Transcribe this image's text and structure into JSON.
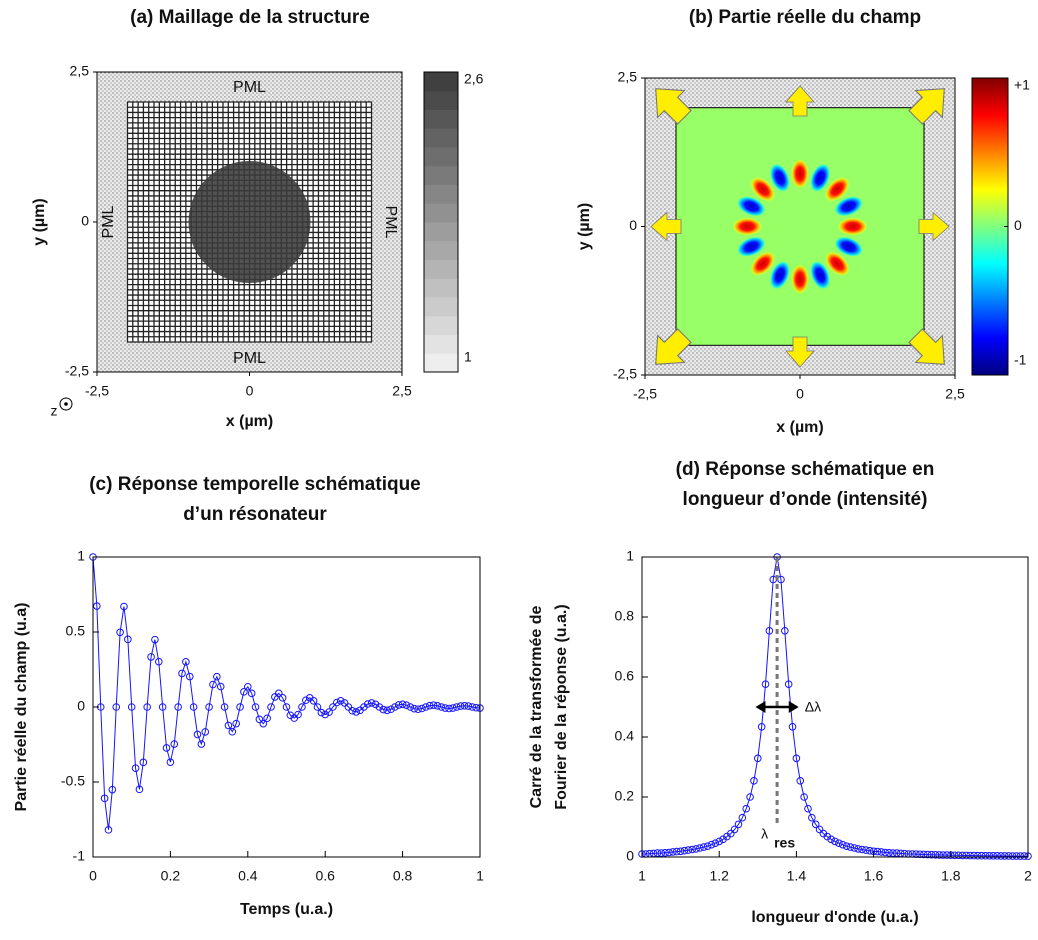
{
  "chart_data": [
    {
      "type": "mesh",
      "title": "(a) Maillage de la structure",
      "xlabel": "x (µm)",
      "ylabel": "y (µm)",
      "xlim": [
        -2.5,
        2.5
      ],
      "ylim": [
        -2.5,
        2.5
      ],
      "xticks": [
        {
          "value": -2.5,
          "label": "-2,5"
        },
        0,
        {
          "value": 2.5,
          "label": "2,5"
        }
      ],
      "yticks": [
        {
          "value": -2.5,
          "label": "-2,5"
        },
        0,
        {
          "value": 2.5,
          "label": "2,5"
        }
      ],
      "annotations": [
        "PML",
        "PML",
        "PML",
        "PML"
      ],
      "axis_note": "z",
      "colorbar": {
        "clim": [
          1,
          2.6
        ],
        "ticks": [
          {
            "value": 2.6,
            "label": "2,6"
          },
          1
        ],
        "colors": [
          "#f4f4f4",
          "#3a3a3a"
        ]
      }
    },
    {
      "type": "field",
      "title": "(b) Partie réelle du champ",
      "xlabel": "x (µm)",
      "ylabel": "y (µm)",
      "xlim": [
        -2.5,
        2.5
      ],
      "ylim": [
        -2.5,
        2.5
      ],
      "xticks": [
        {
          "value": -2.5,
          "label": "-2,5"
        },
        0,
        {
          "value": 2.5,
          "label": "2,5"
        }
      ],
      "yticks": [
        {
          "value": -2.5,
          "label": "-2,5"
        },
        0,
        {
          "value": 2.5,
          "label": "2,5"
        }
      ],
      "colorbar": {
        "clim": [
          -1,
          1
        ],
        "ticks": [
          {
            "value": 1,
            "label": "+1"
          },
          0,
          -1
        ],
        "colormap": "jet"
      }
    },
    {
      "type": "line",
      "title": [
        "(c) Réponse temporelle schématique",
        "d’un résonateur"
      ],
      "xlabel": "Temps (u.a.)",
      "ylabel": [
        "Partie réelle du champ (u.a)"
      ],
      "xlim": [
        0,
        1
      ],
      "ylim": [
        -1,
        1
      ],
      "xticks": [
        0,
        0.2,
        0.4,
        0.6,
        0.8,
        1
      ],
      "yticks": [
        -1,
        -0.5,
        0,
        0.5,
        1
      ],
      "x": [
        0,
        0.01,
        0.02,
        0.03,
        0.04,
        0.05,
        0.06,
        0.07,
        0.08,
        0.09,
        0.1,
        0.11,
        0.12,
        0.13,
        0.14,
        0.15,
        0.16,
        0.17,
        0.18,
        0.19,
        0.2,
        0.21,
        0.22,
        0.23,
        0.24,
        0.25,
        0.26,
        0.27,
        0.28,
        0.29,
        0.3,
        0.31,
        0.32,
        0.33,
        0.34,
        0.35,
        0.36,
        0.37,
        0.38,
        0.39,
        0.4,
        0.41,
        0.42,
        0.43,
        0.44,
        0.45,
        0.46,
        0.47,
        0.48,
        0.49,
        0.5,
        0.51,
        0.52,
        0.53,
        0.54,
        0.55,
        0.56,
        0.57,
        0.58,
        0.59,
        0.6,
        0.61,
        0.62,
        0.63,
        0.64,
        0.65,
        0.66,
        0.67,
        0.68,
        0.69,
        0.7,
        0.71,
        0.72,
        0.73,
        0.74,
        0.75,
        0.76,
        0.77,
        0.78,
        0.79,
        0.8,
        0.81,
        0.82,
        0.83,
        0.84,
        0.85,
        0.86,
        0.87,
        0.88,
        0.89,
        0.9,
        0.91,
        0.92,
        0.93,
        0.94,
        0.95,
        0.96,
        0.97,
        0.98,
        0.99,
        1
      ],
      "series": [
        {
          "color": "#1414ff",
          "values": [
            1,
            0.673,
            0,
            -0.609,
            -0.819,
            -0.551,
            0,
            0.498,
            0.67,
            0.451,
            0,
            -0.408,
            -0.549,
            -0.369,
            0,
            0.334,
            0.449,
            0.302,
            0,
            -0.273,
            -0.368,
            -0.247,
            0,
            0.224,
            0.301,
            0.203,
            0,
            -0.183,
            -0.247,
            -0.166,
            0,
            0.15,
            0.202,
            0.136,
            0,
            -0.123,
            -0.165,
            -0.111,
            0,
            0.101,
            0.135,
            0.091,
            0,
            -0.082,
            -0.111,
            -0.075,
            0,
            0.067,
            0.091,
            0.061,
            0,
            -0.055,
            -0.074,
            -0.05,
            0,
            0.045,
            0.061,
            0.041,
            0,
            -0.037,
            -0.05,
            -0.034,
            0,
            0.03,
            0.041,
            0.027,
            0,
            -0.025,
            -0.033,
            -0.022,
            0,
            0.02,
            0.027,
            0.018,
            0,
            -0.017,
            -0.022,
            -0.015,
            0,
            0.014,
            0.018,
            0.012,
            0,
            -0.011,
            -0.015,
            -0.01,
            0,
            0.009,
            0.012,
            0.008,
            0,
            -0.007,
            -0.01,
            -0.007,
            0,
            0.006,
            0.008,
            0.006,
            0,
            -0.005,
            -0.007
          ]
        }
      ]
    },
    {
      "type": "line",
      "title": [
        "(d) Réponse schématique en",
        "longueur d’onde (intensité)"
      ],
      "xlabel": "longueur d'onde (u.a.)",
      "ylabel": [
        "Carré de la transformée de",
        "Fourier de la réponse (u.a.)"
      ],
      "xlim": [
        1,
        2
      ],
      "ylim": [
        0,
        1
      ],
      "xticks": [
        1,
        1.2,
        1.4,
        1.6,
        1.8,
        2
      ],
      "yticks": [
        0,
        0.2,
        0.4,
        0.6,
        0.8,
        1
      ],
      "annotations": {
        "width": "Δλ",
        "peak": "λ",
        "peak_sub": "res"
      },
      "x": [
        1,
        1.01,
        1.02,
        1.03,
        1.04,
        1.05,
        1.06,
        1.07,
        1.08,
        1.09,
        1.1,
        1.11,
        1.12,
        1.13,
        1.14,
        1.15,
        1.16,
        1.17,
        1.18,
        1.19,
        1.2,
        1.21,
        1.22,
        1.23,
        1.24,
        1.25,
        1.26,
        1.27,
        1.28,
        1.29,
        1.3,
        1.31,
        1.32,
        1.33,
        1.34,
        1.35,
        1.36,
        1.37,
        1.38,
        1.39,
        1.4,
        1.41,
        1.42,
        1.43,
        1.44,
        1.45,
        1.46,
        1.47,
        1.48,
        1.49,
        1.5,
        1.51,
        1.52,
        1.53,
        1.54,
        1.55,
        1.56,
        1.57,
        1.58,
        1.59,
        1.6,
        1.61,
        1.62,
        1.63,
        1.64,
        1.65,
        1.66,
        1.67,
        1.68,
        1.69,
        1.7,
        1.71,
        1.72,
        1.73,
        1.74,
        1.75,
        1.76,
        1.77,
        1.78,
        1.79,
        1.8,
        1.81,
        1.82,
        1.83,
        1.84,
        1.85,
        1.86,
        1.87,
        1.88,
        1.89,
        1.9,
        1.91,
        1.92,
        1.93,
        1.94,
        1.95,
        1.96,
        1.97,
        1.98,
        1.99,
        2
      ],
      "series": [
        {
          "color": "#1414ff",
          "values": [
            0.01,
            0.01,
            0.011,
            0.012,
            0.013,
            0.013,
            0.014,
            0.015,
            0.017,
            0.018,
            0.019,
            0.021,
            0.023,
            0.025,
            0.027,
            0.03,
            0.033,
            0.036,
            0.041,
            0.046,
            0.052,
            0.059,
            0.068,
            0.078,
            0.092,
            0.109,
            0.131,
            0.161,
            0.2,
            0.254,
            0.329,
            0.434,
            0.576,
            0.754,
            0.925,
            1,
            0.925,
            0.754,
            0.576,
            0.434,
            0.329,
            0.254,
            0.2,
            0.161,
            0.131,
            0.109,
            0.092,
            0.078,
            0.068,
            0.059,
            0.052,
            0.046,
            0.041,
            0.036,
            0.033,
            0.03,
            0.027,
            0.025,
            0.023,
            0.021,
            0.019,
            0.018,
            0.017,
            0.015,
            0.014,
            0.013,
            0.013,
            0.012,
            0.011,
            0.01,
            0.01,
            0.0094,
            0.0089,
            0.0084,
            0.008,
            0.0076,
            0.0072,
            0.0069,
            0.0066,
            0.0063,
            0.006,
            0.0058,
            0.0055,
            0.0053,
            0.0051,
            0.0049,
            0.0047,
            0.0045,
            0.0043,
            0.0042,
            0.004,
            0.0039,
            0.0038,
            0.0036,
            0.0035,
            0.0034,
            0.0033,
            0.0032,
            0.0031,
            0.003,
            0.0029
          ]
        }
      ]
    }
  ]
}
